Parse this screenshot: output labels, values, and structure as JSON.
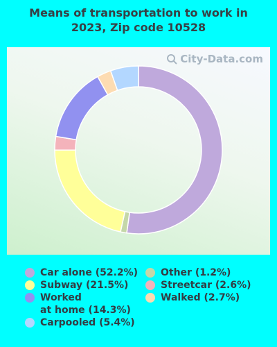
{
  "title_lines": [
    "Means of transportation to work in",
    "2023, Zip code 10528"
  ],
  "watermark": "City-Data.com",
  "colors": {
    "page_background": "#00ffff",
    "title_text": "#374045"
  },
  "chart_data": {
    "type": "pie",
    "style": "donut",
    "title": "Means of transportation to work in 2023, Zip code 10528",
    "series": [
      {
        "values": [
          {
            "label": "Car alone",
            "value": 52.2,
            "color": "#bfa9dc",
            "legend": "Car alone (52.2%)"
          },
          {
            "label": "Other",
            "value": 1.2,
            "color": "#c4d7a8",
            "legend": "Other (1.2%)"
          },
          {
            "label": "Subway",
            "value": 21.5,
            "color": "#ffff99",
            "legend": "Subway (21.5%)"
          },
          {
            "label": "Streetcar",
            "value": 2.6,
            "color": "#f4b3bb",
            "legend": "Streetcar (2.6%)"
          },
          {
            "label": "Worked at home",
            "value": 14.3,
            "color": "#9191f0",
            "legend": "Worked\nat home (14.3%)"
          },
          {
            "label": "Walked",
            "value": 2.7,
            "color": "#fddcb2",
            "legend": "Walked (2.7%)"
          },
          {
            "label": "Carpooled",
            "value": 5.4,
            "color": "#b3d7ff",
            "legend": "Carpooled (5.4%)"
          }
        ]
      }
    ],
    "legend_placement": "bottom",
    "legend_columns": [
      [
        0,
        2,
        4,
        6
      ],
      [
        1,
        3,
        5
      ]
    ]
  }
}
